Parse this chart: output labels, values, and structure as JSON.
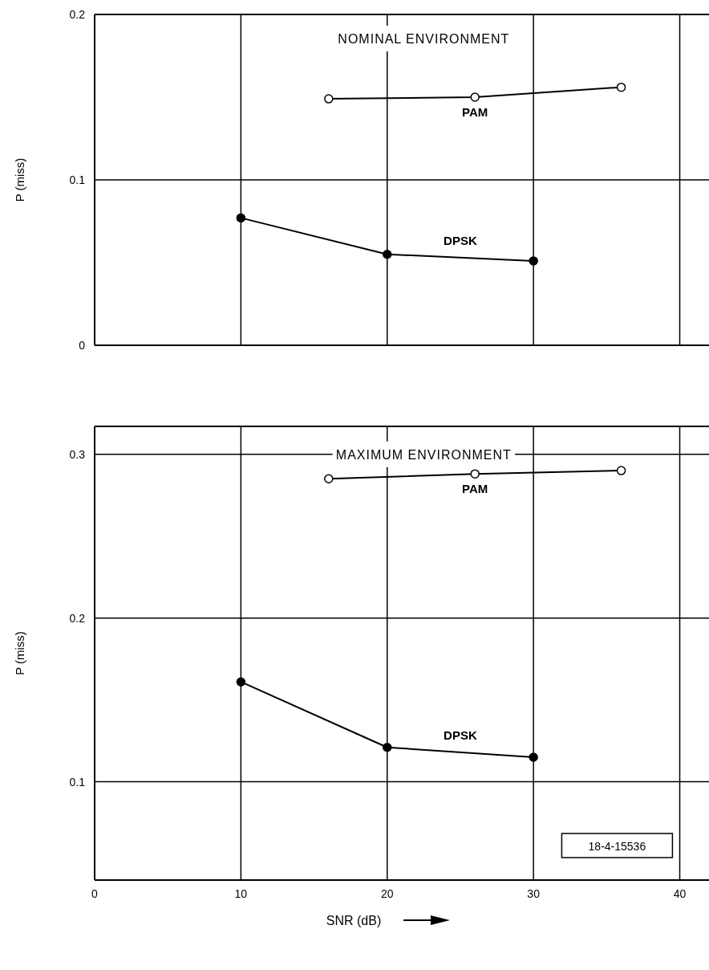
{
  "chart_data": [
    {
      "type": "line",
      "title": "NOMINAL ENVIRONMENT",
      "ylabel": "P (miss)",
      "xlim": [
        0,
        42
      ],
      "xticks": [
        0,
        10,
        20,
        30,
        40
      ],
      "ylim": [
        0,
        0.2
      ],
      "yticks": [
        0,
        0.1,
        0.2
      ],
      "tick_labels": "y",
      "grid": true,
      "marker": "circle",
      "line_style": "solid",
      "series": [
        {
          "name": "PAM",
          "color": "#000000",
          "x": [
            16,
            26,
            36
          ],
          "values": [
            0.149,
            0.15,
            0.156
          ]
        },
        {
          "name": "DPSK",
          "color": "#000000",
          "x": [
            10,
            20,
            30
          ],
          "values": [
            0.077,
            0.055,
            0.051
          ]
        }
      ]
    },
    {
      "type": "line",
      "title": "MAXIMUM ENVIRONMENT",
      "xlabel": "SNR (dB)",
      "ylabel": "P (miss)",
      "xlim": [
        0,
        42
      ],
      "xticks": [
        0,
        10,
        20,
        30,
        40
      ],
      "ylim": [
        0.04,
        0.317
      ],
      "yticks": [
        0.1,
        0.2,
        0.3
      ],
      "grid": true,
      "marker": "circle",
      "line_style": "solid",
      "annotations": [
        "18-4-15536"
      ],
      "series": [
        {
          "name": "PAM",
          "color": "#000000",
          "x": [
            16,
            26,
            36
          ],
          "values": [
            0.285,
            0.288,
            0.29
          ]
        },
        {
          "name": "DPSK",
          "color": "#000000",
          "x": [
            10,
            20,
            30
          ],
          "values": [
            0.161,
            0.121,
            0.115
          ]
        }
      ]
    }
  ]
}
